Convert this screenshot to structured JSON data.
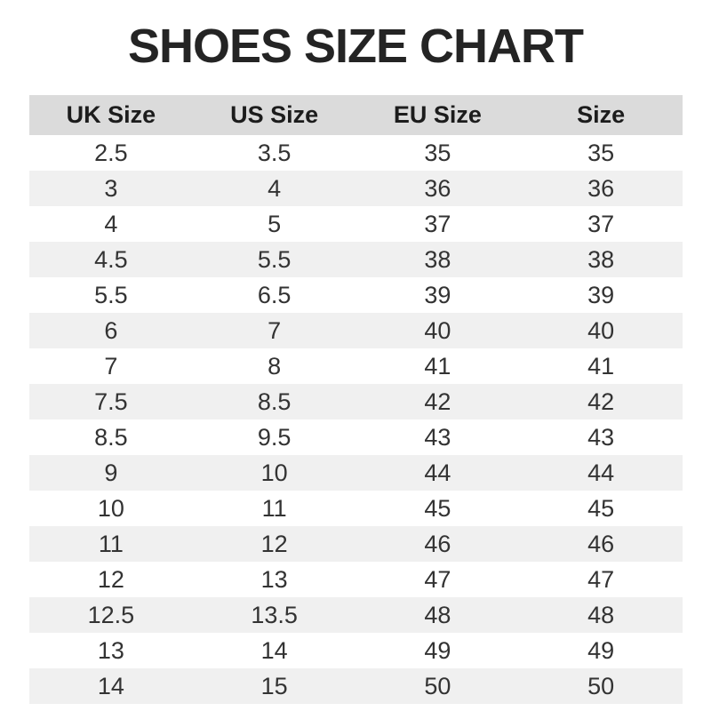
{
  "title": "SHOES SIZE CHART",
  "table": {
    "columns": [
      "UK Size",
      "US Size",
      "EU Size",
      "Size"
    ],
    "rows": [
      [
        "2.5",
        "3.5",
        "35",
        "35"
      ],
      [
        "3",
        "4",
        "36",
        "36"
      ],
      [
        "4",
        "5",
        "37",
        "37"
      ],
      [
        "4.5",
        "5.5",
        "38",
        "38"
      ],
      [
        "5.5",
        "6.5",
        "39",
        "39"
      ],
      [
        "6",
        "7",
        "40",
        "40"
      ],
      [
        "7",
        "8",
        "41",
        "41"
      ],
      [
        "7.5",
        "8.5",
        "42",
        "42"
      ],
      [
        "8.5",
        "9.5",
        "43",
        "43"
      ],
      [
        "9",
        "10",
        "44",
        "44"
      ],
      [
        "10",
        "11",
        "45",
        "45"
      ],
      [
        "11",
        "12",
        "46",
        "46"
      ],
      [
        "12",
        "13",
        "47",
        "47"
      ],
      [
        "12.5",
        "13.5",
        "48",
        "48"
      ],
      [
        "13",
        "14",
        "49",
        "49"
      ],
      [
        "14",
        "15",
        "50",
        "50"
      ]
    ]
  },
  "colors": {
    "header_bg": "#dbdbdb",
    "alt_row_bg": "#f0f0f0",
    "title_color": "#242424",
    "text_color": "#333333"
  },
  "chart_data": {
    "type": "table",
    "title": "SHOES SIZE CHART",
    "columns": [
      "UK Size",
      "US Size",
      "EU Size",
      "Size"
    ],
    "rows": [
      [
        "2.5",
        "3.5",
        "35",
        "35"
      ],
      [
        "3",
        "4",
        "36",
        "36"
      ],
      [
        "4",
        "5",
        "37",
        "37"
      ],
      [
        "4.5",
        "5.5",
        "38",
        "38"
      ],
      [
        "5.5",
        "6.5",
        "39",
        "39"
      ],
      [
        "6",
        "7",
        "40",
        "40"
      ],
      [
        "7",
        "8",
        "41",
        "41"
      ],
      [
        "7.5",
        "8.5",
        "42",
        "42"
      ],
      [
        "8.5",
        "9.5",
        "43",
        "43"
      ],
      [
        "9",
        "10",
        "44",
        "44"
      ],
      [
        "10",
        "11",
        "45",
        "45"
      ],
      [
        "11",
        "12",
        "46",
        "46"
      ],
      [
        "12",
        "13",
        "47",
        "47"
      ],
      [
        "12.5",
        "13.5",
        "48",
        "48"
      ],
      [
        "13",
        "14",
        "49",
        "49"
      ],
      [
        "14",
        "15",
        "50",
        "50"
      ]
    ],
    "layout": {
      "header_background": "#dbdbdb",
      "alternating_row_background": "#f0f0f0",
      "row_striping": "even rows shaded, starting from second data row"
    }
  }
}
